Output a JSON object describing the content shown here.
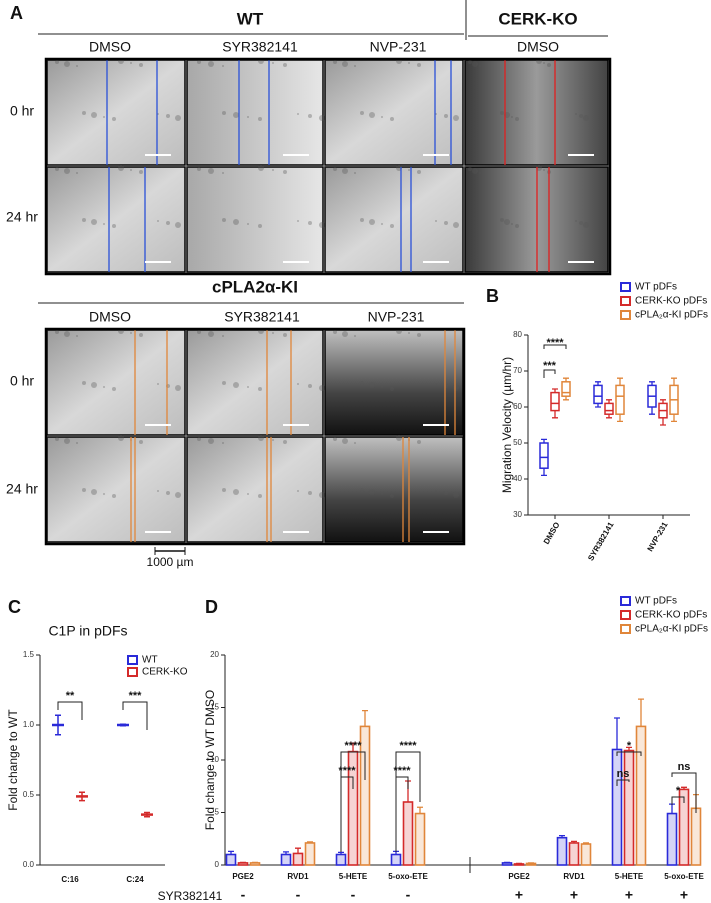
{
  "panel_a": {
    "label": "A",
    "groups": [
      {
        "title": "WT",
        "columns": [
          "DMSO",
          "SYR382141",
          "NVP-231"
        ]
      },
      {
        "title": "CERK-KO",
        "columns": [
          "DMSO"
        ]
      }
    ],
    "rows": [
      "0 hr",
      "24 hr"
    ]
  },
  "panel_a_ki": {
    "title": "cPLA2α-KI",
    "columns": [
      "DMSO",
      "SYR382141",
      "NVP-231"
    ],
    "rows": [
      "0 hr",
      "24 hr"
    ],
    "scale_bar": "1000 µm"
  },
  "chart_data": [
    {
      "type": "box",
      "panel_label": "B",
      "y_label": "Migration Velocity (µm/hr)",
      "categories": [
        "DMSO",
        "SYR382141",
        "NVP-231"
      ],
      "ylim": [
        30,
        80
      ],
      "yticks": [
        30,
        40,
        50,
        60,
        70,
        80
      ],
      "series": [
        {
          "name": "WT pDFs",
          "color": "#2a2ad8",
          "values": [
            [
              41,
              43,
              46,
              50,
              51
            ],
            [
              60,
              61,
              63,
              66,
              67
            ],
            [
              58,
              60,
              63,
              66,
              67
            ]
          ]
        },
        {
          "name": "CERK-KO pDFs",
          "color": "#d42a2a",
          "values": [
            [
              57,
              59,
              61,
              64,
              65
            ],
            [
              57,
              58,
              59,
              61,
              62
            ],
            [
              55,
              57,
              59,
              61,
              62
            ]
          ]
        },
        {
          "name": "cPLA₂α-KI pDFs",
          "color": "#e0863a",
          "values": [
            [
              62,
              63,
              64,
              67,
              68
            ],
            [
              56,
              58,
              63,
              66,
              68
            ],
            [
              56,
              58,
              62,
              66,
              68
            ]
          ]
        }
      ],
      "annotations": [
        "****",
        "***"
      ]
    },
    {
      "type": "errorbar",
      "panel_label": "C",
      "title": "C1P in pDFs",
      "y_label": "Fold change to WT",
      "categories": [
        "C:16",
        "C:24"
      ],
      "ylim": [
        0,
        1.5
      ],
      "yticks": [
        {
          "value": 0,
          "label": "0.0"
        },
        0.5,
        {
          "value": 1,
          "label": "1.0"
        },
        1.5
      ],
      "series": [
        {
          "name": "WT",
          "color": "#2a2ad8",
          "values": [
            1.0,
            1.0
          ],
          "errors": [
            0.07,
            0.005
          ]
        },
        {
          "name": "CERK-KO",
          "color": "#d42a2a",
          "values": [
            0.49,
            0.36
          ],
          "errors": [
            0.03,
            0.015
          ]
        }
      ],
      "annotations": [
        "**",
        "***"
      ]
    },
    {
      "type": "bar",
      "panel_label": "D",
      "y_label": "Fold change to WT DMSO",
      "categories": [
        "PGE2",
        "RVD1",
        "5-HETE",
        "5-oxo-ETE",
        "PGE2",
        "RVD1",
        "5-HETE",
        "5-oxo-ETE"
      ],
      "treatment_label": "SYR382141",
      "treatment": [
        "-",
        "-",
        "-",
        "-",
        "+",
        "+",
        "+",
        "+"
      ],
      "ylim": [
        0,
        20
      ],
      "yticks": [
        0,
        5,
        10,
        15,
        20
      ],
      "series": [
        {
          "name": "WT pDFs",
          "color": "#2a2ad8",
          "values": [
            1.0,
            1.0,
            1.0,
            1.0,
            0.2,
            2.6,
            11.0,
            4.9
          ],
          "errors": [
            0.3,
            0.25,
            0.2,
            0.3,
            0.05,
            0.2,
            3.0,
            0.9
          ]
        },
        {
          "name": "CERK-KO pDFs",
          "color": "#d42a2a",
          "values": [
            0.2,
            1.1,
            10.8,
            6.0,
            0.1,
            2.1,
            10.9,
            7.2
          ],
          "errors": [
            0.05,
            0.5,
            0.8,
            2.0,
            0.05,
            0.15,
            0.3,
            0.2
          ]
        },
        {
          "name": "cPLA₂α-KI pDFs",
          "color": "#e0863a",
          "values": [
            0.2,
            2.1,
            13.2,
            4.9,
            0.15,
            2.0,
            13.2,
            5.4
          ],
          "errors": [
            0.05,
            0.1,
            1.5,
            0.6,
            0.05,
            0.1,
            2.6,
            1.3
          ]
        }
      ],
      "annotations": [
        "****",
        "****",
        "****",
        "****",
        "ns",
        "*",
        "*",
        "ns"
      ]
    }
  ]
}
